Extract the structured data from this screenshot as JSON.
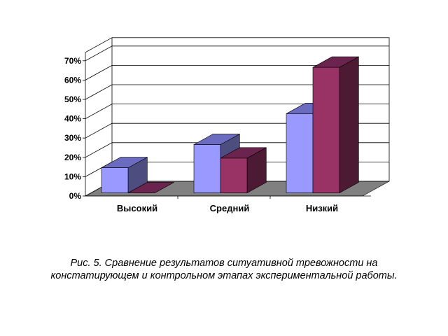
{
  "chart_data": {
    "type": "bar",
    "style": "3d-clustered-column",
    "categories": [
      "Высокий",
      "Средний",
      "Низкий"
    ],
    "series": [
      {
        "values": [
          13,
          25,
          41
        ],
        "color": "#9999ff"
      },
      {
        "values": [
          0,
          18,
          65
        ],
        "color": "#993366"
      }
    ],
    "ylim": [
      0,
      70
    ],
    "ytick_labels": [
      "0%",
      "10%",
      "20%",
      "30%",
      "40%",
      "50%",
      "60%",
      "70%"
    ],
    "grid": true,
    "legend": "none"
  },
  "caption": {
    "line1": "Рис. 5. Сравнение результатов ситуативной тревожности на",
    "line2": "констатирующем и контрольном этапах экспериментальной работы."
  }
}
